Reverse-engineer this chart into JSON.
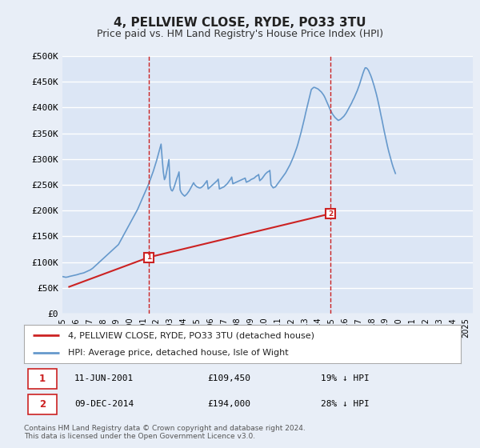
{
  "title": "4, PELLVIEW CLOSE, RYDE, PO33 3TU",
  "subtitle": "Price paid vs. HM Land Registry's House Price Index (HPI)",
  "xlim_start": 1995.0,
  "xlim_end": 2025.5,
  "ylim": [
    0,
    500000
  ],
  "yticks": [
    0,
    50000,
    100000,
    150000,
    200000,
    250000,
    300000,
    350000,
    400000,
    450000,
    500000
  ],
  "ytick_labels": [
    "£0",
    "£50K",
    "£100K",
    "£150K",
    "£200K",
    "£250K",
    "£300K",
    "£350K",
    "£400K",
    "£450K",
    "£500K"
  ],
  "background_color": "#e8eef7",
  "plot_bg_color": "#dce6f5",
  "grid_color": "#ffffff",
  "hpi_color": "#6699cc",
  "price_color": "#cc2222",
  "marker1_date": 2001.44,
  "marker1_price": 109450,
  "marker1_label": "1",
  "marker2_date": 2014.93,
  "marker2_price": 194000,
  "marker2_label": "2",
  "legend_line1": "4, PELLVIEW CLOSE, RYDE, PO33 3TU (detached house)",
  "legend_line2": "HPI: Average price, detached house, Isle of Wight",
  "annotation1_date": "11-JUN-2001",
  "annotation1_price": "£109,450",
  "annotation1_hpi": "19% ↓ HPI",
  "annotation2_date": "09-DEC-2014",
  "annotation2_price": "£194,000",
  "annotation2_hpi": "28% ↓ HPI",
  "footer": "Contains HM Land Registry data © Crown copyright and database right 2024.\nThis data is licensed under the Open Government Licence v3.0.",
  "hpi_values": [
    72000,
    71500,
    71000,
    70500,
    70800,
    71200,
    72000,
    72500,
    73000,
    73500,
    74000,
    74500,
    75000,
    75500,
    76200,
    77000,
    77500,
    78000,
    78500,
    79000,
    80000,
    81000,
    82000,
    83000,
    84000,
    85000,
    86500,
    88000,
    90000,
    92000,
    94000,
    96000,
    98000,
    100000,
    102000,
    104000,
    106000,
    108000,
    110000,
    112000,
    114000,
    116000,
    118000,
    120000,
    122000,
    124000,
    126000,
    128000,
    130000,
    132000,
    134000,
    138000,
    142000,
    146000,
    150000,
    154000,
    158000,
    162000,
    166000,
    170000,
    174000,
    178000,
    182000,
    186000,
    190000,
    194000,
    198000,
    202000,
    207000,
    212000,
    217000,
    222000,
    227000,
    232000,
    237000,
    242000,
    247000,
    252000,
    258000,
    264000,
    270000,
    276000,
    283000,
    290000,
    297000,
    305000,
    313000,
    321000,
    329000,
    300000,
    275000,
    260000,
    265000,
    276000,
    287000,
    299000,
    248000,
    240000,
    238000,
    242000,
    248000,
    255000,
    262000,
    268000,
    275000,
    240000,
    235000,
    232000,
    230000,
    228000,
    230000,
    232000,
    235000,
    238000,
    242000,
    246000,
    250000,
    254000,
    250000,
    248000,
    246000,
    245000,
    244000,
    244000,
    245000,
    247000,
    249000,
    252000,
    255000,
    258000,
    242000,
    244000,
    246000,
    248000,
    250000,
    252000,
    254000,
    256000,
    258000,
    261000,
    242000,
    243000,
    244000,
    245000,
    246000,
    248000,
    250000,
    252000,
    255000,
    258000,
    261000,
    265000,
    252000,
    253000,
    254000,
    255000,
    256000,
    257000,
    258000,
    259000,
    260000,
    261000,
    262000,
    263000,
    255000,
    256000,
    257000,
    258000,
    260000,
    261000,
    262000,
    263000,
    265000,
    267000,
    268000,
    270000,
    258000,
    260000,
    262000,
    265000,
    268000,
    271000,
    273000,
    275000,
    276000,
    278000,
    250000,
    247000,
    244000,
    245000,
    246000,
    249000,
    252000,
    255000,
    258000,
    261000,
    264000,
    267000,
    270000,
    273000,
    277000,
    281000,
    285000,
    289000,
    294000,
    299000,
    304000,
    310000,
    316000,
    322000,
    329000,
    337000,
    345000,
    353000,
    362000,
    371000,
    380000,
    390000,
    399000,
    408000,
    417000,
    426000,
    435000,
    437000,
    439000,
    439000,
    438000,
    437000,
    436000,
    434000,
    432000,
    430000,
    427000,
    424000,
    420000,
    415000,
    410000,
    405000,
    400000,
    395000,
    391000,
    387000,
    384000,
    381000,
    379000,
    377000,
    375000,
    376000,
    377000,
    379000,
    381000,
    383000,
    386000,
    389000,
    393000,
    397000,
    401000,
    405000,
    409000,
    414000,
    418000,
    423000,
    428000,
    433000,
    439000,
    445000,
    452000,
    459000,
    466000,
    472000,
    477000,
    477000,
    475000,
    472000,
    467000,
    462000,
    456000,
    449000,
    442000,
    434000,
    426000,
    417000,
    407000,
    397000,
    386000,
    376000,
    365000,
    354000,
    344000,
    334000,
    324000,
    315000,
    307000,
    299000,
    291000,
    284000,
    278000,
    272000
  ],
  "price_years": [
    1995.5,
    2001.44,
    2014.93
  ],
  "price_values": [
    52000,
    109450,
    194000
  ],
  "xtick_years": [
    1995,
    1996,
    1997,
    1998,
    1999,
    2000,
    2001,
    2002,
    2003,
    2004,
    2005,
    2006,
    2007,
    2008,
    2009,
    2010,
    2011,
    2012,
    2013,
    2014,
    2015,
    2016,
    2017,
    2018,
    2019,
    2020,
    2021,
    2022,
    2023,
    2024,
    2025
  ]
}
